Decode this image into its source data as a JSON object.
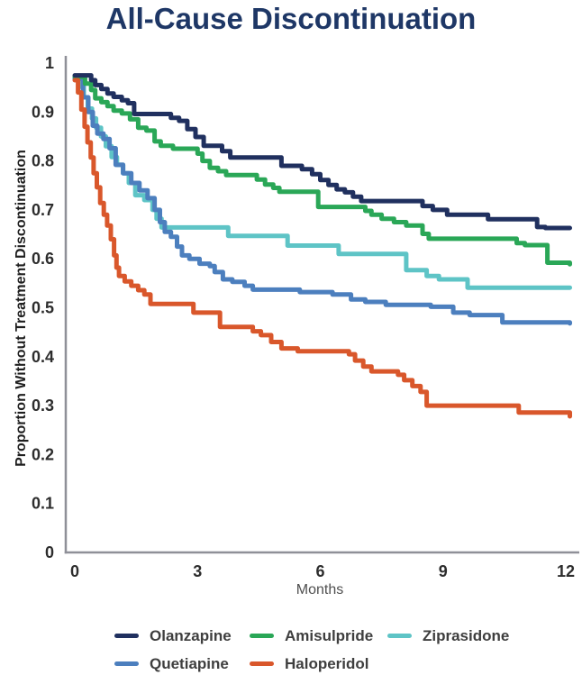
{
  "title": "All-Cause Discontinuation",
  "colors": {
    "title": "#1e3766",
    "axis_line": "#8f9098",
    "tick_text": "#2d2d2d",
    "y_axis_title_text": "#1f1f1f",
    "x_axis_title_text": "#4f4f4f",
    "legend_text": "#3e3e3e",
    "background": "#ffffff",
    "olanzapine": "#20305f",
    "amisulpride": "#2aa757",
    "ziprasidone": "#5ec4c6",
    "quetiapine": "#4c7fbe",
    "haloperidol": "#d9572b"
  },
  "chart_data": {
    "type": "line",
    "subtype": "kaplan_meier_step",
    "title": "All-Cause Discontinuation",
    "xlabel": "Months",
    "ylabel": "Proportion Without Treatment Discontinuation",
    "xlim": [
      0,
      12.1
    ],
    "ylim": [
      0,
      1
    ],
    "grid": false,
    "legend_position": "bottom",
    "legend_rows": [
      [
        0,
        1,
        2
      ],
      [
        3,
        4
      ]
    ],
    "xticks": {
      "values": [
        0,
        3,
        6,
        9,
        12
      ],
      "labels": [
        "0",
        "3",
        "6",
        "9",
        "12"
      ]
    },
    "yticks": {
      "values": [
        1,
        0.9,
        0.8,
        0.7,
        0.6,
        0.5,
        0.4,
        0.3,
        0.2,
        0.1,
        0
      ],
      "labels": [
        "1",
        "0.9",
        "0.8",
        "0.7",
        "0.6",
        "0.5",
        "0.4",
        "0.3",
        "0.2",
        "0.1",
        "0"
      ]
    },
    "series": [
      {
        "name": "Olanzapine",
        "color_key": "olanzapine",
        "final_value": 0.66,
        "points": [
          [
            0,
            0.975
          ],
          [
            0.4,
            0.965
          ],
          [
            0.5,
            0.955
          ],
          [
            0.65,
            0.947
          ],
          [
            0.8,
            0.938
          ],
          [
            0.95,
            0.931
          ],
          [
            1.15,
            0.924
          ],
          [
            1.3,
            0.918
          ],
          [
            1.45,
            0.896
          ],
          [
            2.35,
            0.888
          ],
          [
            2.55,
            0.882
          ],
          [
            2.75,
            0.865
          ],
          [
            2.95,
            0.849
          ],
          [
            3.15,
            0.831
          ],
          [
            3.6,
            0.82
          ],
          [
            3.8,
            0.807
          ],
          [
            5.05,
            0.79
          ],
          [
            5.55,
            0.783
          ],
          [
            5.8,
            0.773
          ],
          [
            6.0,
            0.761
          ],
          [
            6.2,
            0.751
          ],
          [
            6.4,
            0.742
          ],
          [
            6.6,
            0.736
          ],
          [
            6.8,
            0.727
          ],
          [
            7.0,
            0.718
          ],
          [
            8.5,
            0.708
          ],
          [
            8.75,
            0.7
          ],
          [
            9.1,
            0.69
          ],
          [
            10.1,
            0.681
          ],
          [
            11.3,
            0.665
          ],
          [
            11.5,
            0.663
          ],
          [
            12.1,
            0.663
          ]
        ]
      },
      {
        "name": "Amisulpride",
        "color_key": "amisulpride",
        "final_value": 0.59,
        "points": [
          [
            0,
            0.972
          ],
          [
            0.25,
            0.958
          ],
          [
            0.4,
            0.945
          ],
          [
            0.5,
            0.928
          ],
          [
            0.65,
            0.92
          ],
          [
            0.8,
            0.912
          ],
          [
            0.95,
            0.903
          ],
          [
            1.15,
            0.897
          ],
          [
            1.35,
            0.885
          ],
          [
            1.55,
            0.868
          ],
          [
            1.75,
            0.862
          ],
          [
            1.95,
            0.84
          ],
          [
            2.1,
            0.831
          ],
          [
            2.4,
            0.825
          ],
          [
            3.0,
            0.815
          ],
          [
            3.12,
            0.8
          ],
          [
            3.3,
            0.786
          ],
          [
            3.5,
            0.779
          ],
          [
            3.7,
            0.771
          ],
          [
            4.45,
            0.762
          ],
          [
            4.65,
            0.752
          ],
          [
            4.85,
            0.745
          ],
          [
            5.0,
            0.737
          ],
          [
            5.95,
            0.706
          ],
          [
            7.1,
            0.698
          ],
          [
            7.25,
            0.69
          ],
          [
            7.5,
            0.682
          ],
          [
            7.8,
            0.675
          ],
          [
            8.1,
            0.668
          ],
          [
            8.5,
            0.651
          ],
          [
            8.65,
            0.641
          ],
          [
            10.8,
            0.632
          ],
          [
            11.0,
            0.628
          ],
          [
            11.55,
            0.592
          ],
          [
            12.1,
            0.589
          ]
        ]
      },
      {
        "name": "Ziprasidone",
        "color_key": "ziprasidone",
        "final_value": 0.54,
        "points": [
          [
            0,
            0.97
          ],
          [
            0.12,
            0.952
          ],
          [
            0.22,
            0.93
          ],
          [
            0.32,
            0.907
          ],
          [
            0.42,
            0.887
          ],
          [
            0.52,
            0.868
          ],
          [
            0.64,
            0.85
          ],
          [
            0.76,
            0.83
          ],
          [
            0.9,
            0.808
          ],
          [
            1.03,
            0.792
          ],
          [
            1.18,
            0.775
          ],
          [
            1.32,
            0.755
          ],
          [
            1.48,
            0.73
          ],
          [
            1.7,
            0.72
          ],
          [
            1.9,
            0.7
          ],
          [
            2.0,
            0.682
          ],
          [
            2.12,
            0.664
          ],
          [
            3.75,
            0.647
          ],
          [
            5.2,
            0.627
          ],
          [
            6.45,
            0.61
          ],
          [
            8.1,
            0.577
          ],
          [
            8.6,
            0.565
          ],
          [
            8.9,
            0.558
          ],
          [
            9.6,
            0.541
          ],
          [
            12.1,
            0.541
          ]
        ]
      },
      {
        "name": "Quetiapine",
        "color_key": "quetiapine",
        "final_value": 0.47,
        "points": [
          [
            0,
            0.968
          ],
          [
            0.2,
            0.93
          ],
          [
            0.33,
            0.9
          ],
          [
            0.44,
            0.872
          ],
          [
            0.55,
            0.856
          ],
          [
            0.7,
            0.845
          ],
          [
            0.85,
            0.826
          ],
          [
            1.0,
            0.792
          ],
          [
            1.18,
            0.775
          ],
          [
            1.38,
            0.755
          ],
          [
            1.58,
            0.74
          ],
          [
            1.78,
            0.724
          ],
          [
            1.95,
            0.7
          ],
          [
            2.08,
            0.675
          ],
          [
            2.2,
            0.655
          ],
          [
            2.35,
            0.645
          ],
          [
            2.5,
            0.625
          ],
          [
            2.62,
            0.607
          ],
          [
            2.8,
            0.6
          ],
          [
            3.05,
            0.59
          ],
          [
            3.3,
            0.585
          ],
          [
            3.42,
            0.573
          ],
          [
            3.62,
            0.558
          ],
          [
            3.85,
            0.553
          ],
          [
            4.15,
            0.545
          ],
          [
            4.35,
            0.537
          ],
          [
            5.5,
            0.532
          ],
          [
            6.3,
            0.527
          ],
          [
            6.75,
            0.517
          ],
          [
            7.1,
            0.512
          ],
          [
            7.6,
            0.506
          ],
          [
            8.7,
            0.502
          ],
          [
            9.25,
            0.49
          ],
          [
            9.65,
            0.485
          ],
          [
            10.45,
            0.47
          ],
          [
            12.1,
            0.468
          ]
        ]
      },
      {
        "name": "Haloperidol",
        "color_key": "haloperidol",
        "final_value": 0.28,
        "points": [
          [
            0,
            0.965
          ],
          [
            0.08,
            0.94
          ],
          [
            0.16,
            0.905
          ],
          [
            0.24,
            0.87
          ],
          [
            0.31,
            0.838
          ],
          [
            0.39,
            0.807
          ],
          [
            0.46,
            0.775
          ],
          [
            0.54,
            0.746
          ],
          [
            0.62,
            0.714
          ],
          [
            0.71,
            0.69
          ],
          [
            0.79,
            0.668
          ],
          [
            0.88,
            0.64
          ],
          [
            0.96,
            0.607
          ],
          [
            1.02,
            0.582
          ],
          [
            1.08,
            0.565
          ],
          [
            1.22,
            0.554
          ],
          [
            1.38,
            0.545
          ],
          [
            1.55,
            0.536
          ],
          [
            1.7,
            0.527
          ],
          [
            1.85,
            0.508
          ],
          [
            2.9,
            0.49
          ],
          [
            3.55,
            0.461
          ],
          [
            4.35,
            0.452
          ],
          [
            4.55,
            0.444
          ],
          [
            4.8,
            0.43
          ],
          [
            5.05,
            0.417
          ],
          [
            5.45,
            0.411
          ],
          [
            6.7,
            0.405
          ],
          [
            6.85,
            0.392
          ],
          [
            7.05,
            0.38
          ],
          [
            7.25,
            0.37
          ],
          [
            7.9,
            0.363
          ],
          [
            8.05,
            0.352
          ],
          [
            8.25,
            0.34
          ],
          [
            8.45,
            0.328
          ],
          [
            8.6,
            0.3
          ],
          [
            10.85,
            0.286
          ],
          [
            12.1,
            0.278
          ]
        ]
      }
    ]
  }
}
